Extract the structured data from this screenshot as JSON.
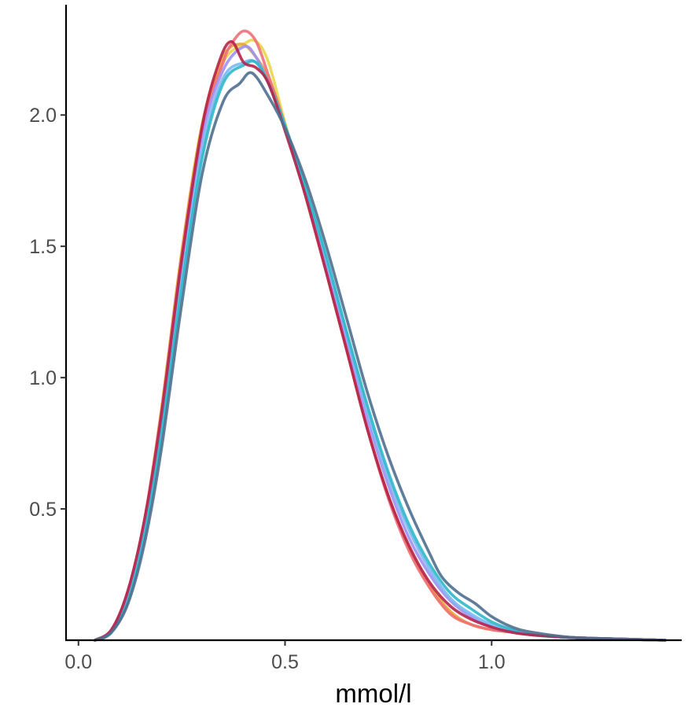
{
  "chart_data": {
    "type": "line",
    "title": "",
    "xlabel": "mmol/l",
    "ylabel": "",
    "xlim": [
      -0.03,
      1.46
    ],
    "ylim": [
      0,
      2.42
    ],
    "grid": false,
    "legend": "none",
    "x_ticks": [
      {
        "value": 0.0,
        "label": "0.0"
      },
      {
        "value": 0.5,
        "label": "0.5"
      },
      {
        "value": 1.0,
        "label": "1.0"
      }
    ],
    "y_ticks": [
      {
        "value": 0.5,
        "label": "0.5"
      },
      {
        "value": 1.0,
        "label": "1.0"
      },
      {
        "value": 1.5,
        "label": "1.5"
      },
      {
        "value": 2.0,
        "label": "2.0"
      }
    ],
    "series": [
      {
        "color": "#E7D84B",
        "x": [
          0.04,
          0.08,
          0.12,
          0.16,
          0.2,
          0.25,
          0.3,
          0.35,
          0.4,
          0.43,
          0.46,
          0.5,
          0.55,
          0.6,
          0.65,
          0.7,
          0.75,
          0.8,
          0.85,
          0.9,
          0.95,
          1.0,
          1.05,
          1.1,
          1.2,
          1.3,
          1.42
        ],
        "y": [
          0,
          0.04,
          0.18,
          0.45,
          0.85,
          1.45,
          1.95,
          2.2,
          2.27,
          2.28,
          2.2,
          1.97,
          1.7,
          1.4,
          1.1,
          0.8,
          0.55,
          0.35,
          0.2,
          0.1,
          0.06,
          0.04,
          0.03,
          0.02,
          0.01,
          0.005,
          0
        ]
      },
      {
        "color": "#E8A534",
        "x": [
          0.04,
          0.08,
          0.12,
          0.16,
          0.2,
          0.25,
          0.3,
          0.35,
          0.39,
          0.42,
          0.46,
          0.5,
          0.55,
          0.6,
          0.65,
          0.7,
          0.75,
          0.8,
          0.85,
          0.9,
          0.95,
          1.0,
          1.05,
          1.1,
          1.2,
          1.3,
          1.42
        ],
        "y": [
          0,
          0.04,
          0.19,
          0.46,
          0.87,
          1.48,
          1.97,
          2.22,
          2.27,
          2.24,
          2.14,
          1.96,
          1.69,
          1.4,
          1.1,
          0.8,
          0.55,
          0.35,
          0.21,
          0.11,
          0.06,
          0.04,
          0.03,
          0.02,
          0.01,
          0.005,
          0
        ]
      },
      {
        "color": "#F06F7A",
        "x": [
          0.04,
          0.08,
          0.12,
          0.16,
          0.2,
          0.25,
          0.3,
          0.35,
          0.37,
          0.4,
          0.43,
          0.46,
          0.5,
          0.55,
          0.6,
          0.65,
          0.7,
          0.75,
          0.8,
          0.85,
          0.9,
          0.95,
          1.0,
          1.05,
          1.1,
          1.2,
          1.3,
          1.42
        ],
        "y": [
          0,
          0.04,
          0.19,
          0.46,
          0.86,
          1.46,
          1.95,
          2.2,
          2.27,
          2.32,
          2.28,
          2.15,
          1.96,
          1.69,
          1.4,
          1.1,
          0.8,
          0.54,
          0.34,
          0.2,
          0.1,
          0.06,
          0.04,
          0.03,
          0.02,
          0.01,
          0.005,
          0
        ]
      },
      {
        "color": "#9F90F2",
        "x": [
          0.04,
          0.08,
          0.12,
          0.16,
          0.2,
          0.25,
          0.3,
          0.35,
          0.4,
          0.43,
          0.46,
          0.5,
          0.55,
          0.6,
          0.65,
          0.7,
          0.75,
          0.8,
          0.85,
          0.9,
          0.95,
          1.0,
          1.05,
          1.1,
          1.2,
          1.3,
          1.42
        ],
        "y": [
          0,
          0.04,
          0.18,
          0.44,
          0.83,
          1.42,
          1.92,
          2.17,
          2.26,
          2.22,
          2.12,
          1.95,
          1.7,
          1.42,
          1.13,
          0.84,
          0.59,
          0.39,
          0.25,
          0.15,
          0.09,
          0.05,
          0.03,
          0.02,
          0.01,
          0.005,
          0
        ]
      },
      {
        "color": "#7AB8F2",
        "x": [
          0.04,
          0.08,
          0.12,
          0.16,
          0.2,
          0.25,
          0.3,
          0.35,
          0.4,
          0.43,
          0.46,
          0.5,
          0.55,
          0.6,
          0.65,
          0.7,
          0.75,
          0.8,
          0.85,
          0.9,
          0.95,
          1.0,
          1.05,
          1.1,
          1.2,
          1.3,
          1.42
        ],
        "y": [
          0,
          0.03,
          0.16,
          0.41,
          0.79,
          1.37,
          1.87,
          2.14,
          2.2,
          2.2,
          2.12,
          1.96,
          1.72,
          1.45,
          1.16,
          0.87,
          0.62,
          0.42,
          0.27,
          0.16,
          0.1,
          0.06,
          0.04,
          0.02,
          0.01,
          0.005,
          0
        ]
      },
      {
        "color": "#2FB8C9",
        "x": [
          0.04,
          0.08,
          0.12,
          0.16,
          0.2,
          0.25,
          0.3,
          0.35,
          0.4,
          0.43,
          0.46,
          0.5,
          0.55,
          0.6,
          0.65,
          0.7,
          0.75,
          0.8,
          0.85,
          0.9,
          0.95,
          1.0,
          1.05,
          1.1,
          1.2,
          1.3,
          1.42
        ],
        "y": [
          0,
          0.03,
          0.15,
          0.4,
          0.77,
          1.34,
          1.84,
          2.12,
          2.19,
          2.2,
          2.12,
          1.96,
          1.72,
          1.46,
          1.17,
          0.89,
          0.64,
          0.44,
          0.29,
          0.18,
          0.12,
          0.07,
          0.04,
          0.02,
          0.01,
          0.005,
          0
        ]
      },
      {
        "color": "#B5234A",
        "x": [
          0.04,
          0.08,
          0.12,
          0.16,
          0.2,
          0.25,
          0.3,
          0.34,
          0.37,
          0.4,
          0.43,
          0.46,
          0.5,
          0.55,
          0.6,
          0.65,
          0.7,
          0.75,
          0.8,
          0.85,
          0.9,
          0.95,
          1.0,
          1.05,
          1.1,
          1.2,
          1.3,
          1.42
        ],
        "y": [
          0,
          0.04,
          0.19,
          0.46,
          0.85,
          1.45,
          1.96,
          2.2,
          2.28,
          2.2,
          2.18,
          2.12,
          1.94,
          1.69,
          1.4,
          1.1,
          0.8,
          0.55,
          0.36,
          0.22,
          0.13,
          0.08,
          0.05,
          0.03,
          0.02,
          0.01,
          0.005,
          0
        ]
      },
      {
        "color": "#4F6F8F",
        "x": [
          0.04,
          0.08,
          0.12,
          0.16,
          0.2,
          0.25,
          0.3,
          0.35,
          0.39,
          0.42,
          0.46,
          0.5,
          0.55,
          0.6,
          0.65,
          0.7,
          0.75,
          0.8,
          0.85,
          0.88,
          0.92,
          0.96,
          1.0,
          1.05,
          1.1,
          1.2,
          1.3,
          1.42
        ],
        "y": [
          0,
          0.03,
          0.14,
          0.37,
          0.72,
          1.28,
          1.78,
          2.05,
          2.12,
          2.16,
          2.07,
          1.95,
          1.75,
          1.5,
          1.22,
          0.94,
          0.7,
          0.5,
          0.33,
          0.24,
          0.18,
          0.14,
          0.09,
          0.05,
          0.03,
          0.01,
          0.005,
          0
        ]
      }
    ]
  }
}
